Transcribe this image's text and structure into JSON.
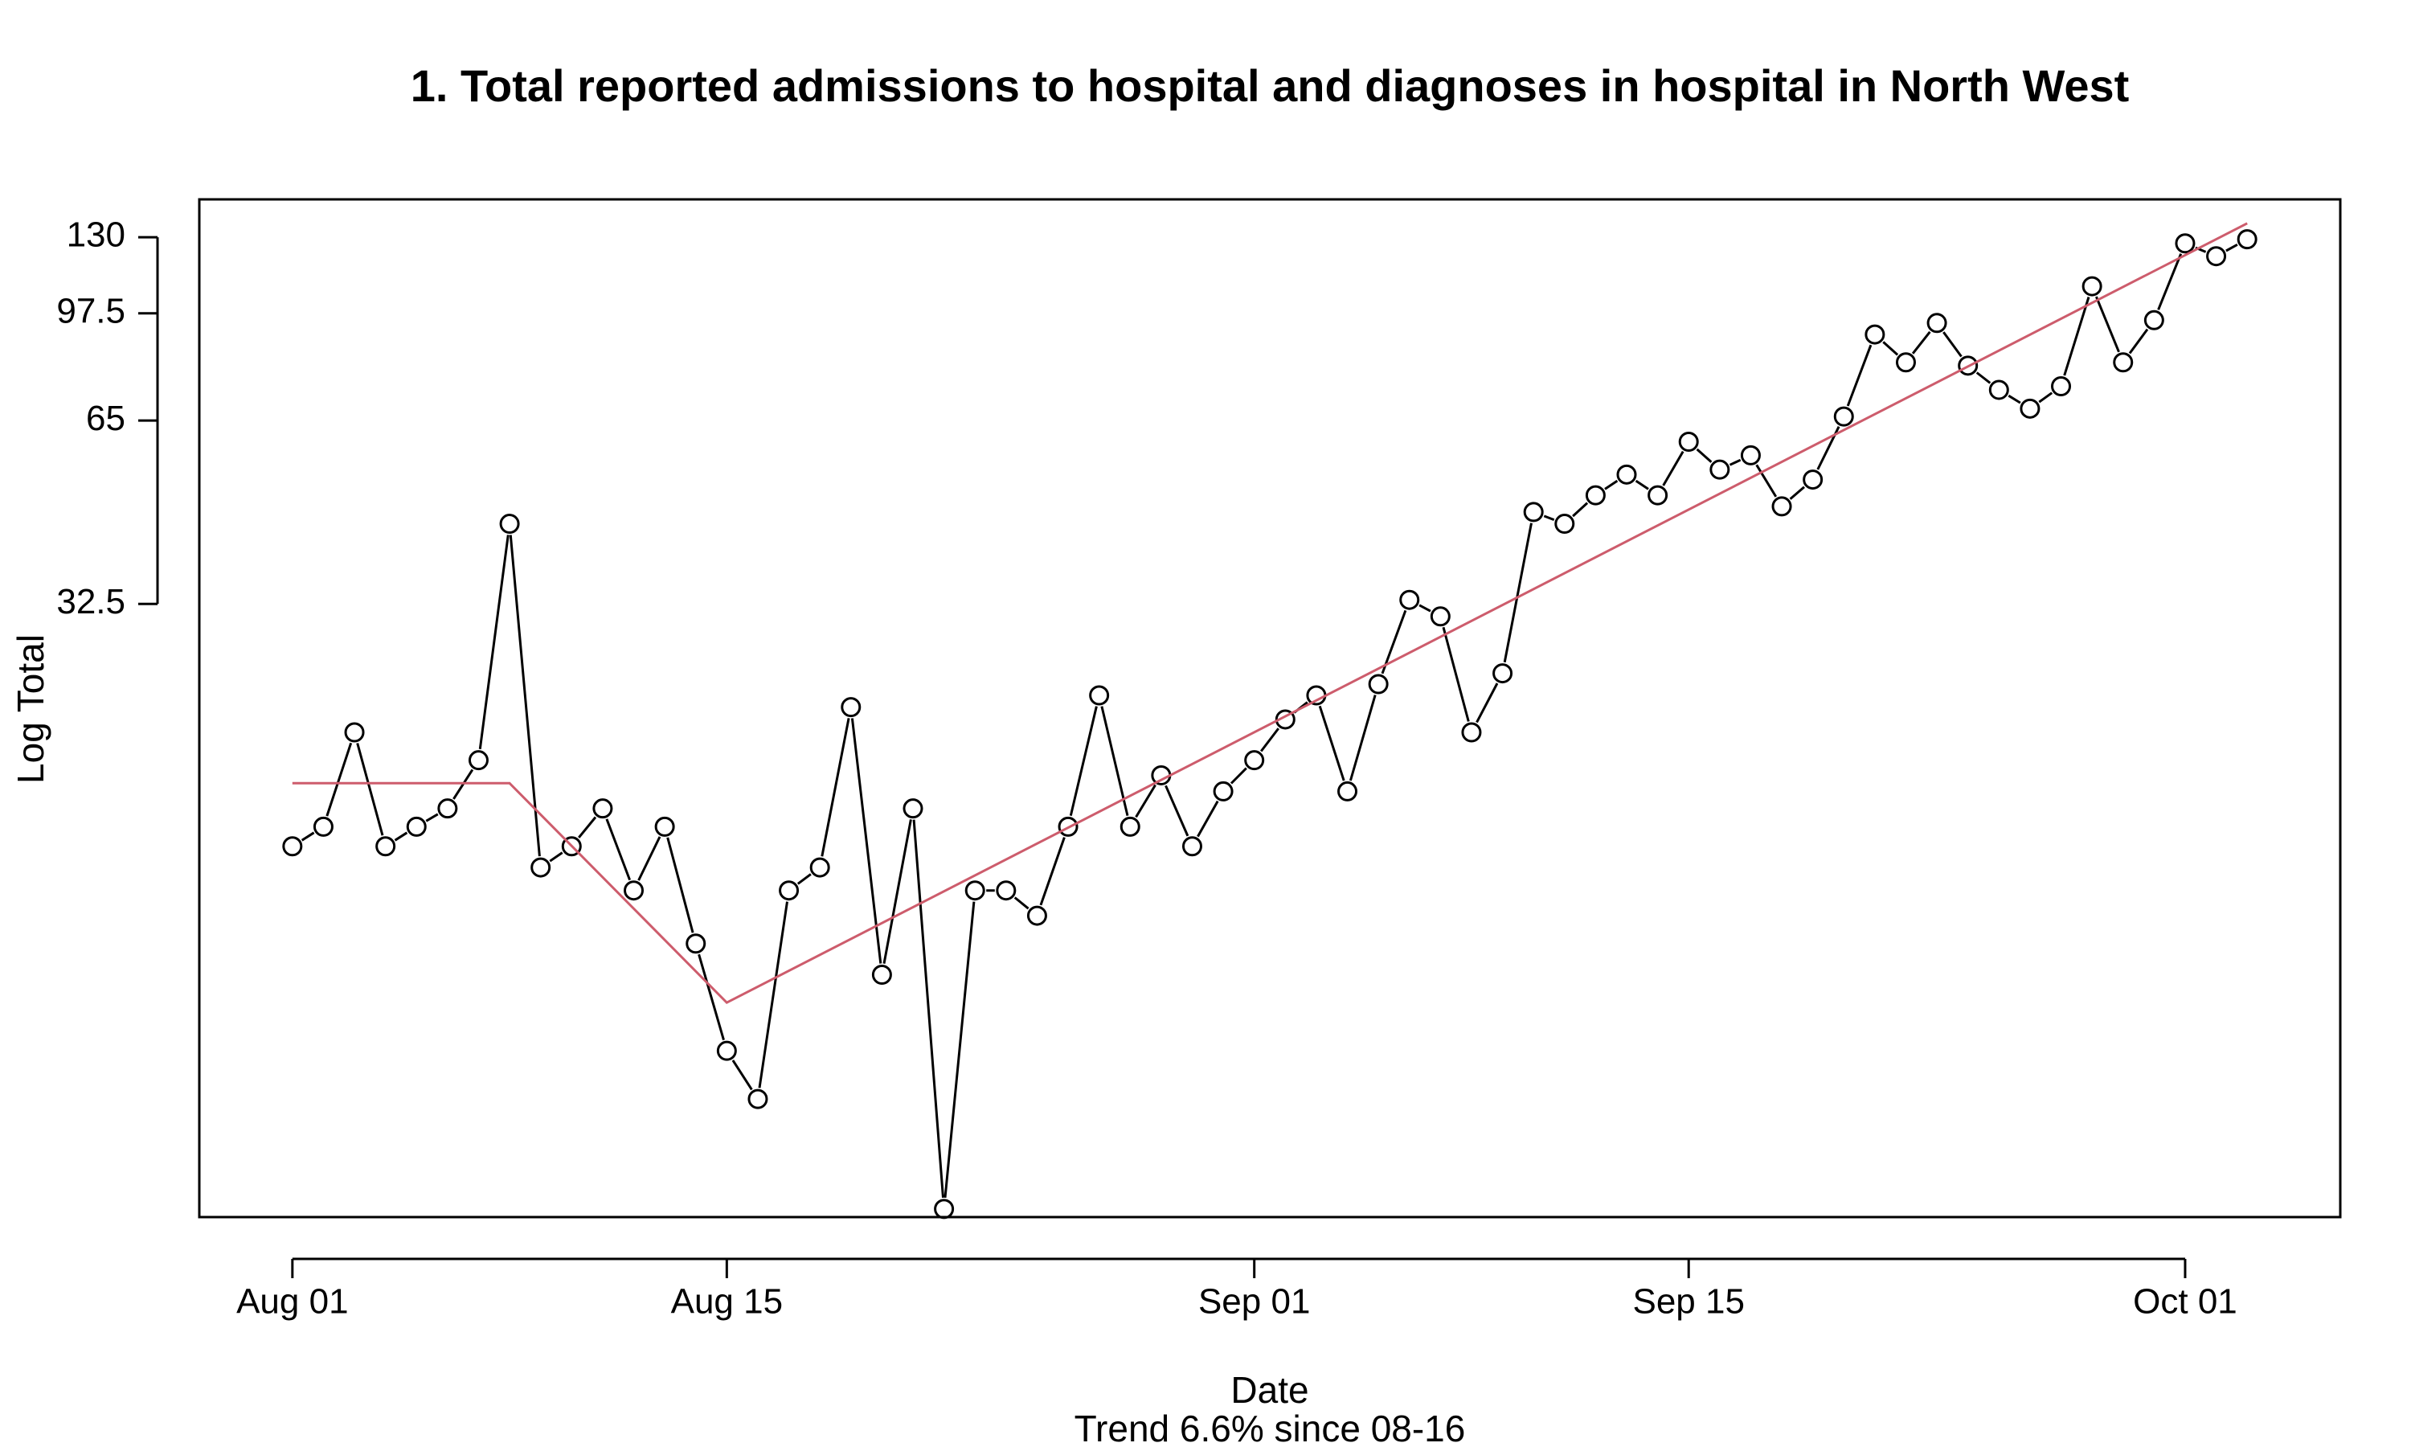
{
  "chart_data": {
    "type": "line",
    "title": "1. Total reported admissions to hospital and diagnoses in hospital in North West",
    "xlabel": "Date",
    "subtitle": "Trend 6.6% since 08-16",
    "ylabel": "Log Total",
    "y_scale": "log",
    "ylim": [
      3.2,
      150
    ],
    "xlim": [
      "2020-07-29",
      "2020-10-06"
    ],
    "x_ticks": [
      {
        "date": "2020-08-01",
        "label": "Aug 01"
      },
      {
        "date": "2020-08-15",
        "label": "Aug 15"
      },
      {
        "date": "2020-09-01",
        "label": "Sep 01"
      },
      {
        "date": "2020-09-15",
        "label": "Sep 15"
      },
      {
        "date": "2020-10-01",
        "label": "Oct 01"
      }
    ],
    "y_ticks": [
      {
        "value": 32.5,
        "label": "32.5"
      },
      {
        "value": 65,
        "label": "65"
      },
      {
        "value": 97.5,
        "label": "97.5"
      },
      {
        "value": 130,
        "label": "130"
      }
    ],
    "grid": false,
    "legend": "none",
    "start_date": "2020-08-01",
    "series": [
      {
        "color": "#000000",
        "marker": "open-circle",
        "x": [
          "2020-08-01",
          "2020-08-02",
          "2020-08-03",
          "2020-08-04",
          "2020-08-05",
          "2020-08-06",
          "2020-08-07",
          "2020-08-08",
          "2020-08-09",
          "2020-08-10",
          "2020-08-11",
          "2020-08-12",
          "2020-08-13",
          "2020-08-14",
          "2020-08-15",
          "2020-08-16",
          "2020-08-17",
          "2020-08-18",
          "2020-08-19",
          "2020-08-20",
          "2020-08-21",
          "2020-08-22",
          "2020-08-23",
          "2020-08-24",
          "2020-08-25",
          "2020-08-26",
          "2020-08-27",
          "2020-08-28",
          "2020-08-29",
          "2020-08-30",
          "2020-08-31",
          "2020-09-01",
          "2020-09-02",
          "2020-09-03",
          "2020-09-04",
          "2020-09-05",
          "2020-09-06",
          "2020-09-07",
          "2020-09-08",
          "2020-09-09",
          "2020-09-10",
          "2020-09-11",
          "2020-09-12",
          "2020-09-13",
          "2020-09-14",
          "2020-09-15",
          "2020-09-16",
          "2020-09-17",
          "2020-09-18",
          "2020-09-19",
          "2020-09-20",
          "2020-09-21",
          "2020-09-22",
          "2020-09-23",
          "2020-09-24",
          "2020-09-25",
          "2020-09-26",
          "2020-09-27",
          "2020-09-28",
          "2020-09-29",
          "2020-09-30",
          "2020-10-01",
          "2020-10-02",
          "2020-10-03"
        ],
        "values": [
          13,
          14,
          20,
          13,
          14,
          15,
          18,
          44,
          12,
          13,
          15,
          11,
          14,
          9,
          6,
          5,
          11,
          12,
          22,
          8,
          15,
          3.3,
          11,
          11,
          10,
          14,
          23,
          14,
          17,
          13,
          16,
          18,
          21,
          23,
          16,
          24,
          33,
          31,
          20,
          25,
          46,
          44,
          49,
          53,
          49,
          60,
          54,
          57,
          47,
          52,
          66,
          90,
          81,
          94,
          80,
          73,
          68,
          74,
          108,
          81,
          95,
          127,
          121,
          129
        ]
      },
      {
        "color": "#cd5c6c",
        "x": [
          "2020-08-01",
          "2020-08-08",
          "2020-08-15",
          "2020-10-03"
        ],
        "values": [
          16.5,
          16.5,
          7.2,
          137
        ]
      }
    ]
  }
}
